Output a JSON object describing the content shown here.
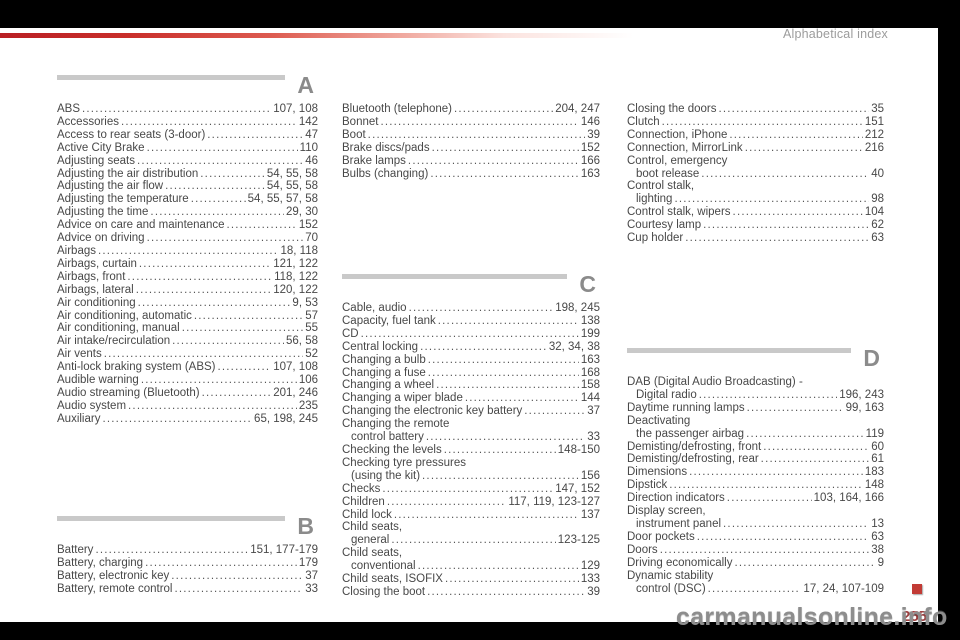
{
  "header": {
    "title": "Alphabetical index"
  },
  "footer": {
    "watermark": "carmanualsonline.info",
    "page_number": "255"
  },
  "colors": {
    "accent_red": "#c92f2b",
    "marker_red": "#c23b35",
    "page_number_red": "#9d4040",
    "section_letter_gray": "#8b8b8b",
    "section_bar_gray": "#c9c9c9",
    "text_gray": "#484848",
    "frame_black": "#000000"
  },
  "index": {
    "columns": [
      {
        "sections": [
          {
            "letter": "A",
            "entries": [
              {
                "label": "ABS",
                "pages": "107, 108"
              },
              {
                "label": "Accessories",
                "pages": "142"
              },
              {
                "label": "Access to rear seats (3-door)",
                "pages": "47"
              },
              {
                "label": "Active City Brake",
                "pages": "110"
              },
              {
                "label": "Adjusting seats",
                "pages": "46"
              },
              {
                "label": "Adjusting the air distribution",
                "pages": "54, 55, 58"
              },
              {
                "label": "Adjusting the air flow",
                "pages": "54, 55, 58"
              },
              {
                "label": "Adjusting the temperature",
                "pages": "54, 55, 57, 58"
              },
              {
                "label": "Adjusting the time",
                "pages": "29, 30"
              },
              {
                "label": "Advice on care and maintenance",
                "pages": "152"
              },
              {
                "label": "Advice on driving",
                "pages": "70"
              },
              {
                "label": "Airbags",
                "pages": "18, 118"
              },
              {
                "label": "Airbags, curtain",
                "pages": "121, 122"
              },
              {
                "label": "Airbags, front",
                "pages": "118, 122"
              },
              {
                "label": "Airbags, lateral",
                "pages": "120, 122"
              },
              {
                "label": "Air conditioning",
                "pages": "9, 53"
              },
              {
                "label": "Air conditioning, automatic",
                "pages": "57"
              },
              {
                "label": "Air conditioning, manual",
                "pages": "55"
              },
              {
                "label": "Air intake/recirculation",
                "pages": "56, 58"
              },
              {
                "label": "Air vents",
                "pages": "52"
              },
              {
                "label": "Anti-lock braking system (ABS)",
                "pages": "107, 108"
              },
              {
                "label": "Audible warning",
                "pages": "106"
              },
              {
                "label": "Audio streaming (Bluetooth)",
                "pages": "201, 246"
              },
              {
                "label": "Audio system",
                "pages": "235"
              },
              {
                "label": "Auxiliary",
                "pages": "65, 198, 245"
              }
            ]
          },
          {
            "letter": "B",
            "entries": [
              {
                "label": "Battery",
                "pages": "151, 177-179"
              },
              {
                "label": "Battery, charging",
                "pages": "179"
              },
              {
                "label": "Battery, electronic key",
                "pages": "37"
              },
              {
                "label": "Battery, remote control",
                "pages": "33"
              }
            ]
          }
        ]
      },
      {
        "sections": [
          {
            "letter": null,
            "entries": [
              {
                "label": "Bluetooth (telephone)",
                "pages": "204, 247"
              },
              {
                "label": "Bonnet",
                "pages": "146"
              },
              {
                "label": "Boot",
                "pages": "39"
              },
              {
                "label": "Brake discs/pads",
                "pages": "152"
              },
              {
                "label": "Brake lamps",
                "pages": "166"
              },
              {
                "label": "Bulbs (changing)",
                "pages": "163"
              }
            ]
          },
          {
            "letter": "C",
            "entries": [
              {
                "label": "Cable, audio",
                "pages": "198, 245"
              },
              {
                "label": "Capacity, fuel tank",
                "pages": "138"
              },
              {
                "label": "CD",
                "pages": "199"
              },
              {
                "label": "Central locking",
                "pages": "32, 34, 38"
              },
              {
                "label": "Changing a bulb",
                "pages": "163"
              },
              {
                "label": "Changing a fuse",
                "pages": "168"
              },
              {
                "label": "Changing a wheel",
                "pages": "158"
              },
              {
                "label": "Changing a wiper blade",
                "pages": "144"
              },
              {
                "label": "Changing the electronic key battery",
                "pages": "37"
              },
              {
                "label": "Changing the remote",
                "label2": "control battery",
                "pages": "33"
              },
              {
                "label": "Checking the levels",
                "pages": "148-150"
              },
              {
                "label": "Checking tyre pressures",
                "label2": "(using the kit)",
                "pages": "156"
              },
              {
                "label": "Checks",
                "pages": "147, 152"
              },
              {
                "label": "Children",
                "pages": "117, 119, 123-127"
              },
              {
                "label": "Child lock",
                "pages": "137"
              },
              {
                "label": "Child seats,",
                "label2": "general",
                "pages": "123-125"
              },
              {
                "label": "Child seats,",
                "label2": "conventional",
                "pages": "129"
              },
              {
                "label": "Child seats, ISOFIX",
                "pages": "133"
              },
              {
                "label": "Closing the boot",
                "pages": "39"
              }
            ]
          }
        ]
      },
      {
        "sections": [
          {
            "letter": null,
            "entries": [
              {
                "label": "Closing the doors",
                "pages": "35"
              },
              {
                "label": "Clutch",
                "pages": "151"
              },
              {
                "label": "Connection, iPhone",
                "pages": "212"
              },
              {
                "label": "Connection, MirrorLink",
                "pages": "216"
              },
              {
                "label": "Control, emergency",
                "label2": "boot release",
                "pages": "40"
              },
              {
                "label": "Control stalk,",
                "label2": "lighting",
                "pages": "98"
              },
              {
                "label": "Control stalk, wipers",
                "pages": "104"
              },
              {
                "label": "Courtesy lamp",
                "pages": "62"
              },
              {
                "label": "Cup holder",
                "pages": "63"
              }
            ]
          },
          {
            "letter": "D",
            "entries": [
              {
                "label": "DAB (Digital Audio Broadcasting) -",
                "label2": "Digital radio",
                "pages": "196, 243"
              },
              {
                "label": "Daytime running lamps",
                "pages": "99, 163"
              },
              {
                "label": "Deactivating",
                "label2": "the passenger airbag",
                "pages": "119"
              },
              {
                "label": "Demisting/defrosting, front",
                "pages": "60"
              },
              {
                "label": "Demisting/defrosting, rear",
                "pages": "61"
              },
              {
                "label": "Dimensions",
                "pages": "183"
              },
              {
                "label": "Dipstick",
                "pages": "148"
              },
              {
                "label": "Direction indicators",
                "pages": "103, 164, 166"
              },
              {
                "label": "Display screen,",
                "label2": "instrument panel",
                "pages": "13"
              },
              {
                "label": "Door pockets",
                "pages": "63"
              },
              {
                "label": "Doors",
                "pages": "38"
              },
              {
                "label": "Driving economically",
                "pages": "9"
              },
              {
                "label": "Dynamic stability",
                "label2": "control (DSC)",
                "pages": "17, 24, 107-109"
              }
            ]
          }
        ]
      }
    ]
  }
}
